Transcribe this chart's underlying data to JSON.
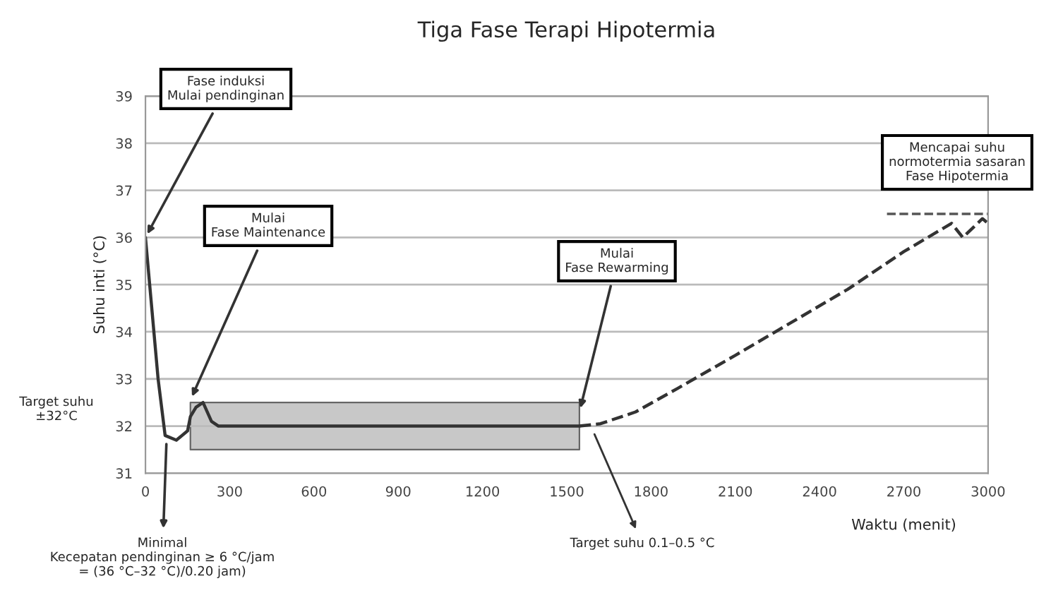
{
  "chart_data": {
    "type": "line",
    "title": "Tiga Fase Terapi Hipotermia",
    "xlabel": "Waktu (menit)",
    "ylabel": "Suhu inti (°C)",
    "series": [
      {
        "color": "#333333",
        "line_style": "solid",
        "x": [
          0,
          45,
          70,
          110,
          150,
          160,
          180,
          205,
          235,
          260,
          1545
        ],
        "values": [
          36.0,
          33.0,
          31.8,
          31.7,
          31.9,
          32.2,
          32.4,
          32.5,
          32.1,
          32.0,
          32.0
        ],
        "lower": [
          null,
          null,
          null,
          null,
          null,
          31.5,
          31.5,
          31.5,
          31.5,
          31.5,
          31.5
        ],
        "upper": [
          null,
          null,
          null,
          null,
          null,
          32.5,
          32.5,
          32.5,
          32.5,
          32.5,
          32.5
        ]
      },
      {
        "color": "#333333",
        "line_style": "dashed",
        "x": [
          1545,
          1620,
          1745,
          1895,
          2100,
          2300,
          2500,
          2700,
          2870,
          2910,
          2980,
          3000
        ],
        "values": [
          32.0,
          32.05,
          32.3,
          32.8,
          33.5,
          34.2,
          34.9,
          35.7,
          36.3,
          36.0,
          36.4,
          36.3
        ]
      }
    ],
    "ref_lines": [
      {
        "axis": "y",
        "value": 36.5,
        "color": "#555555",
        "line_style": "dashed"
      }
    ],
    "annotations": [
      {
        "text": "Fase induksi\nMulai pendinginan",
        "x": 0,
        "y": 36.0
      },
      {
        "text": "Mulai\nFase Maintenance",
        "x": 160,
        "y": 32.55
      },
      {
        "text": "Mulai\nFase Rewarming",
        "x": 1545,
        "y": 32.3
      },
      "Mencapai suhu\nnormotermia sasaran\nFase Hipotermia",
      {
        "text": "Minimal\nKecepatan pendinginan ≥ 6 °C/jam\n= (36 °C–32 °C)/0.20 jam)",
        "x": 75,
        "y": 31.7
      },
      "Target suhu 0.1–0.5 °C",
      "Target suhu\n±32°C"
    ],
    "xlim": [
      0,
      3000
    ],
    "xticks": [
      0,
      300,
      600,
      900,
      1200,
      1500,
      1800,
      2100,
      2400,
      2700,
      3000
    ],
    "ylim": [
      31,
      39
    ],
    "yticks": [
      31,
      32,
      33,
      34,
      35,
      36,
      37,
      38,
      39
    ],
    "grid": "y",
    "legend": false
  }
}
